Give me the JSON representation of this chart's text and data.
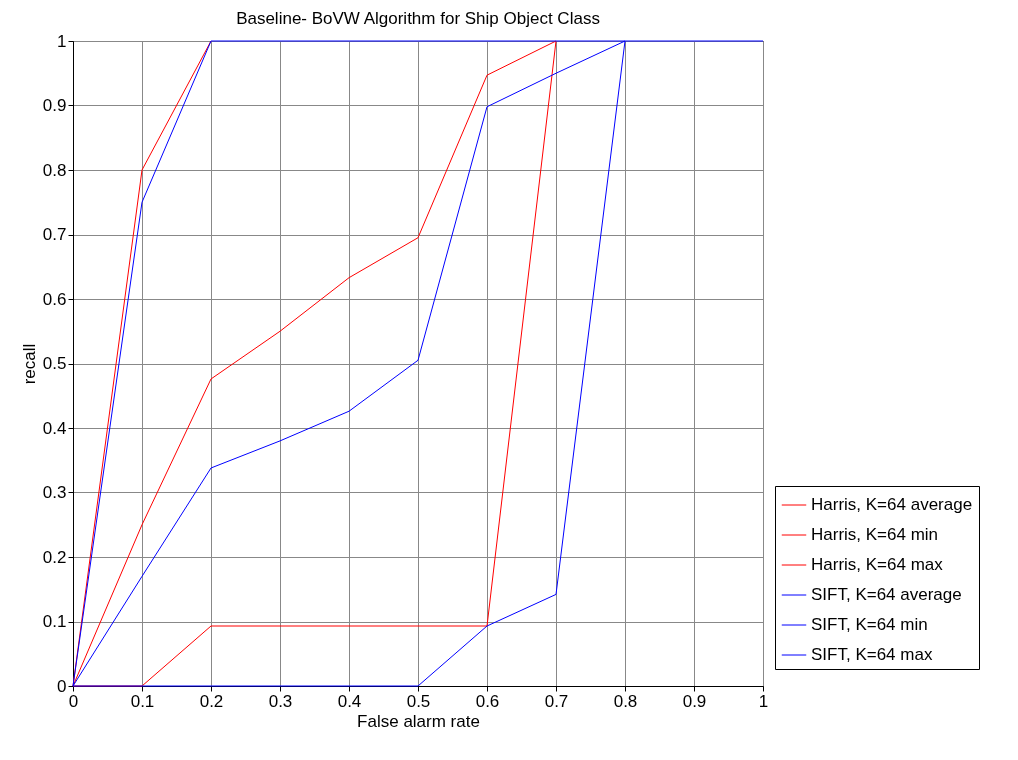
{
  "chart_data": {
    "type": "line",
    "title": "Baseline- BoVW Algorithm for Ship Object Class",
    "xlabel": "False alarm rate",
    "ylabel": "recall",
    "x": [
      0,
      0.1,
      0.2,
      0.3,
      0.4,
      0.5,
      0.6,
      0.7,
      0.8,
      0.9,
      1
    ],
    "series": [
      {
        "name": "Harris, K=64 average",
        "color": "#ff0000",
        "values": [
          0,
          0.25,
          0.476,
          0.55,
          0.633,
          0.695,
          0.947,
          1,
          null,
          null,
          null
        ]
      },
      {
        "name": "Harris, K=64 min",
        "color": "#ff0000",
        "values": [
          0,
          0,
          0.093,
          0.093,
          0.093,
          0.093,
          0.093,
          1,
          null,
          null,
          null
        ]
      },
      {
        "name": "Harris, K=64 max",
        "color": "#ff0000",
        "values": [
          0,
          0.8,
          1,
          null,
          null,
          null,
          null,
          null,
          null,
          null,
          null
        ]
      },
      {
        "name": "SIFT, K=64 average",
        "color": "#0000ff",
        "values": [
          0,
          0.17,
          0.338,
          0.38,
          0.426,
          0.505,
          0.898,
          0.95,
          1,
          null,
          null
        ]
      },
      {
        "name": "SIFT, K=64 min",
        "color": "#0000ff",
        "values": [
          0,
          0,
          0,
          0,
          0,
          0,
          0.093,
          0.142,
          1,
          null,
          null
        ]
      },
      {
        "name": "SIFT, K=64 max",
        "color": "#0000ff",
        "values": [
          0,
          0.75,
          1,
          1,
          1,
          1,
          1,
          1,
          1,
          1,
          1
        ]
      }
    ],
    "xlim": [
      0,
      1
    ],
    "ylim": [
      0,
      1
    ],
    "xticks": [
      {
        "value": 0,
        "label": "0"
      },
      0.1,
      0.2,
      0.3,
      0.4,
      0.5,
      0.6,
      0.7,
      0.8,
      0.9,
      {
        "value": 1,
        "label": "1"
      }
    ],
    "yticks": [
      {
        "value": 0,
        "label": "0"
      },
      0.1,
      0.2,
      0.3,
      0.4,
      0.5,
      0.6,
      0.7,
      0.8,
      0.9,
      {
        "value": 1,
        "label": "1"
      }
    ],
    "grid": true,
    "legend": "bottom right",
    "marker": "none",
    "line_style": "solid"
  }
}
